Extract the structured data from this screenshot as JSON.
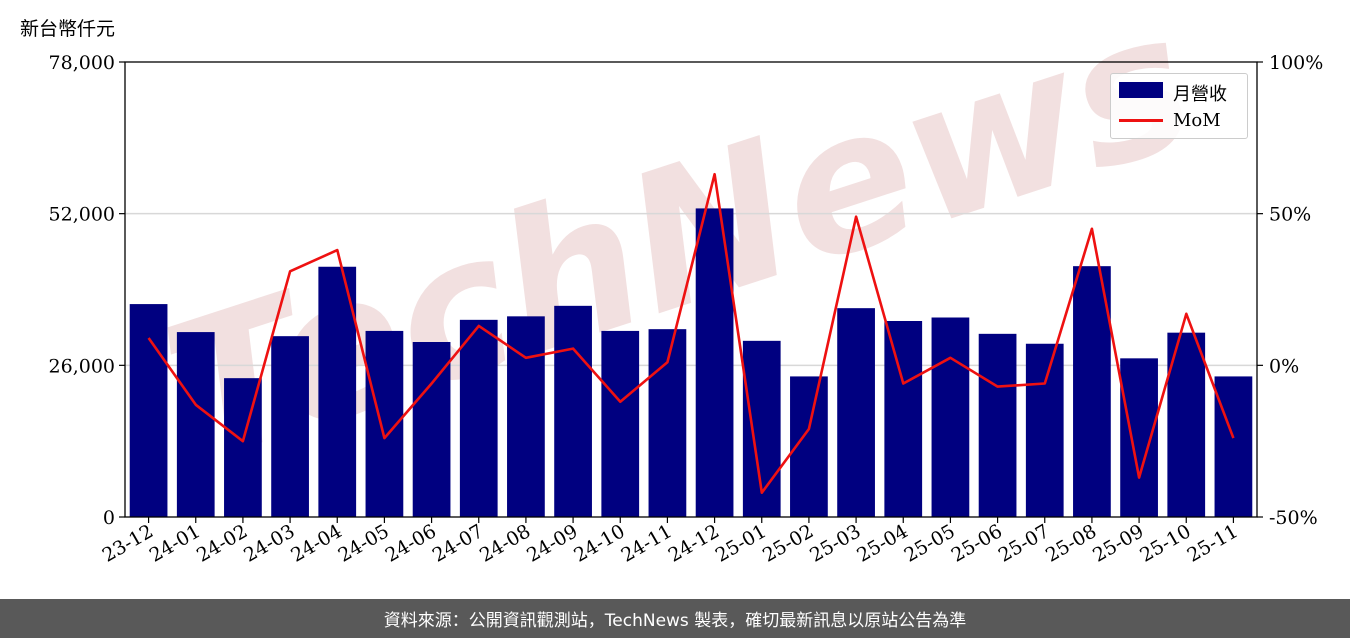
{
  "unit_label": "新台幣仟元",
  "footer_text": "資料來源：公開資訊觀測站，TechNews 製表，確切最新訊息以原站公告為準",
  "watermark_text": "TechNews",
  "colors": {
    "bar": "#000080",
    "line": "#ee1111",
    "grid": "#d8d8d8",
    "footer_bg": "#595959",
    "watermark": "#e8c8c8"
  },
  "chart_data": {
    "type": "bar",
    "categories": [
      "23-12",
      "24-01",
      "24-02",
      "24-03",
      "24-04",
      "24-05",
      "24-06",
      "24-07",
      "24-08",
      "24-09",
      "24-10",
      "24-11",
      "24-12",
      "25-01",
      "25-02",
      "25-03",
      "25-04",
      "25-05",
      "25-06",
      "25-07",
      "25-08",
      "25-09",
      "25-10",
      "25-11"
    ],
    "series": [
      {
        "name": "月營收",
        "axis": "left",
        "type": "bar",
        "values": [
          36500,
          31700,
          23800,
          31000,
          42900,
          31900,
          30000,
          33800,
          34400,
          36200,
          31900,
          32200,
          52900,
          30200,
          24100,
          35800,
          33600,
          34200,
          31400,
          29700,
          43000,
          27200,
          31600,
          24100
        ]
      },
      {
        "name": "MoM",
        "axis": "right",
        "type": "line",
        "values": [
          9,
          -13,
          -25,
          31,
          38,
          -24,
          -6,
          13,
          2.5,
          5.5,
          -12,
          1,
          63,
          -42,
          -21,
          49,
          -6,
          2.5,
          -7,
          -6,
          45,
          -37,
          17,
          -24
        ]
      }
    ],
    "y_left": {
      "ticks": [
        "0",
        "26,000",
        "52,000",
        "78,000"
      ],
      "ylim": [
        0,
        78000
      ]
    },
    "y_right": {
      "ticks": [
        "-50%",
        "0%",
        "50%",
        "100%"
      ],
      "ylim": [
        -50,
        100
      ]
    },
    "grid": "horizontal",
    "legend_position": "top-right"
  }
}
